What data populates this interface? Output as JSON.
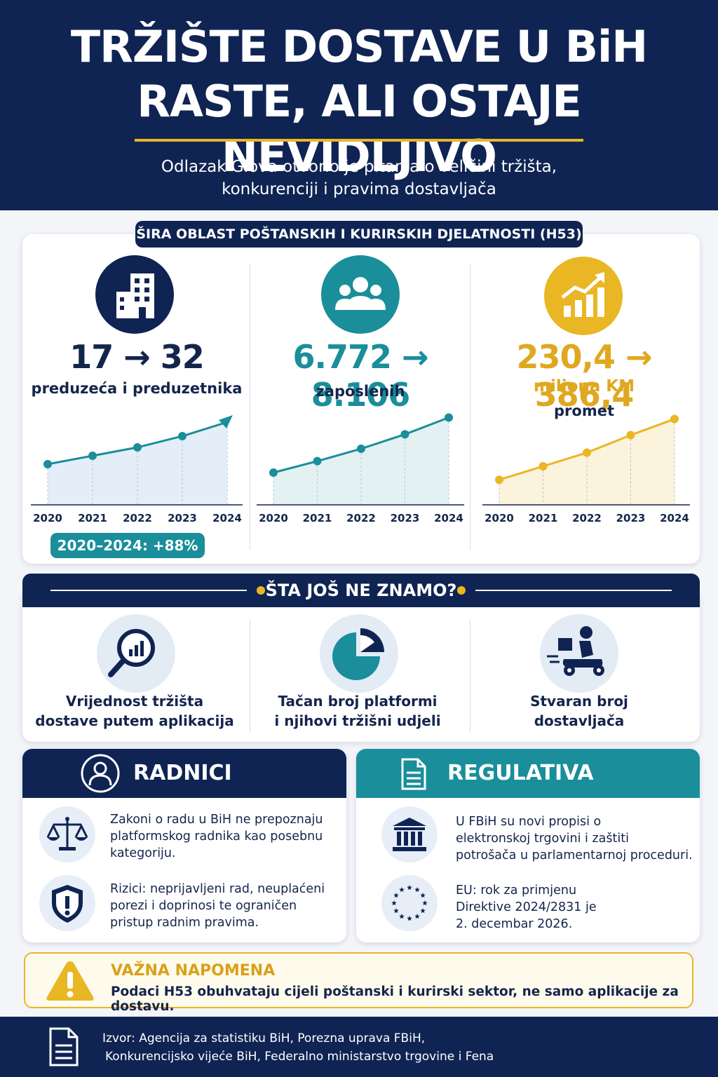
{
  "header": {
    "title_line1": "TRŽIŠTE DOSTAVE U BiH",
    "title_line2": "RASTE, ALI OSTAJE NEVIDLJIVO",
    "subtitle_line1": "Odlazak Glova otvorio je pitanja o veličini tržišta,",
    "subtitle_line2": "konkurenciji i pravima dostavljača"
  },
  "stats_section": {
    "title": "ŠIRA OBLAST POŠTANSKIH I KURIRSKIH DJELATNOSTI (H53)",
    "badge": "2020–2024: +88%",
    "cards": [
      {
        "icon": "building-icon",
        "value": "17 → 32",
        "label": "preduzeća i preduzetnika",
        "color": "#14254d"
      },
      {
        "icon": "people-icon",
        "value": "6.772 → 8.106",
        "label": "zaposlenih",
        "color": "#1a8e9a"
      },
      {
        "icon": "growth-chart-icon",
        "value": "230,4 → 386,4",
        "label_unit": "miliona KM",
        "label": "promet",
        "color": "#e0a820"
      }
    ]
  },
  "chart_data": [
    {
      "type": "area",
      "x": [
        "2020",
        "2021",
        "2022",
        "2023",
        "2024"
      ],
      "values": [
        17,
        20,
        23,
        27,
        32
      ],
      "ylim": [
        10,
        35
      ],
      "color": "#1a8e9a"
    },
    {
      "type": "area",
      "x": [
        "2020",
        "2021",
        "2022",
        "2023",
        "2024"
      ],
      "values": [
        6772,
        7050,
        7350,
        7700,
        8106
      ],
      "ylim": [
        6500,
        8200
      ],
      "color": "#1a8e9a"
    },
    {
      "type": "area",
      "x": [
        "2020",
        "2021",
        "2022",
        "2023",
        "2024"
      ],
      "values": [
        230.4,
        265,
        300,
        345,
        386.4
      ],
      "ylim": [
        220,
        400
      ],
      "color": "#e9b624"
    }
  ],
  "unknown_section": {
    "title": "ŠTA JOŠ NE ZNAMO?",
    "items": [
      {
        "icon": "magnifier-chart-icon",
        "line1": "Vrijednost tržišta",
        "line2": "dostave putem aplikacija"
      },
      {
        "icon": "pie-chart-icon",
        "line1": "Tačan broj platformi",
        "line2": "i njihovi tržišni udjeli"
      },
      {
        "icon": "delivery-scooter-icon",
        "line1": "Stvaran broj",
        "line2": "dostavljača"
      }
    ]
  },
  "workers": {
    "title": "RADNICI",
    "icon": "worker-icon",
    "items": [
      {
        "icon": "scales-icon",
        "lines": [
          "Zakoni o radu u BiH ne prepoznaju",
          "platformskog radnika kao posebnu",
          "kategoriju."
        ]
      },
      {
        "icon": "shield-warning-icon",
        "lines": [
          "Rizici: neprijavljeni rad, neuplaćeni",
          "porezi i doprinosi te ograničen",
          "pristup radnim pravima."
        ]
      }
    ]
  },
  "regulation": {
    "title": "REGULATIVA",
    "icon": "document-icon",
    "items": [
      {
        "icon": "institution-icon",
        "lines": [
          "U FBiH su novi propisi o",
          "elektronskoj trgovini i zaštiti",
          "potrošača u parlamentarnoj proceduri."
        ]
      },
      {
        "icon": "eu-stars-icon",
        "lines": [
          "EU: rok za primjenu",
          "Direktive 2024/2831 je",
          "2. decembar 2026."
        ]
      }
    ]
  },
  "note": {
    "icon": "warning-icon",
    "title": "VAŽNA NAPOMENA",
    "text": "Podaci H53 obuhvataju cijeli poštanski i kurirski sektor, ne samo aplikacije za dostavu."
  },
  "footer": {
    "icon": "source-document-icon",
    "line1": "Izvor: Agencija za statistiku BiH, Porezna uprava FBiH,",
    "line2": "Konkurencijsko vijeće BiH, Federalno ministarstvo trgovine i Fena"
  }
}
